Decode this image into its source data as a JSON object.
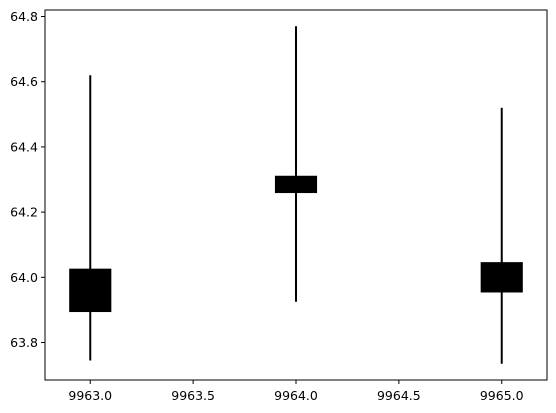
{
  "chart_data": {
    "type": "candlestick",
    "title": "",
    "xlabel": "",
    "ylabel": "",
    "xlim": [
      9962.78,
      9965.22
    ],
    "ylim": [
      63.685,
      64.82
    ],
    "grid": false,
    "x_ticks": [
      9963.0,
      9963.5,
      9964.0,
      9964.5,
      9965.0
    ],
    "x_tick_labels": [
      "9963.0",
      "9963.5",
      "9964.0",
      "9964.5",
      "9965.0"
    ],
    "y_ticks": [
      63.8,
      64.0,
      64.2,
      64.4,
      64.6,
      64.8
    ],
    "y_tick_labels": [
      "63.8",
      "64.0",
      "64.2",
      "64.4",
      "64.6",
      "64.8"
    ],
    "candles": [
      {
        "x": 9963.0,
        "open": 63.895,
        "close": 64.025,
        "low": 63.745,
        "high": 64.62
      },
      {
        "x": 9964.0,
        "open": 64.26,
        "close": 64.31,
        "low": 63.925,
        "high": 64.77
      },
      {
        "x": 9965.0,
        "open": 63.955,
        "close": 64.045,
        "low": 63.735,
        "high": 64.52
      }
    ],
    "body_width": 0.2,
    "colors": {
      "body": "#000000",
      "wick": "#000000",
      "gap": "#ffffff",
      "axes": "#000000"
    }
  }
}
